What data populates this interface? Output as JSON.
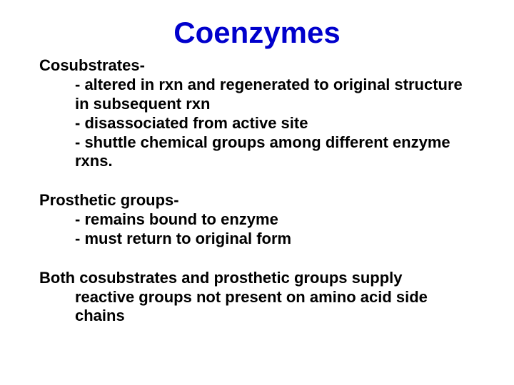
{
  "title": {
    "text": "Coenzymes",
    "color": "#0000cc",
    "fontsize": 42
  },
  "body_fontsize": 22,
  "body_color": "#000000",
  "line_height": 1.22,
  "sections": [
    {
      "header": "Cosubstrates-",
      "bullets": [
        "- altered in rxn and regenerated to original structure in subsequent rxn",
        "- disassociated from active site",
        "- shuttle chemical groups among different enzyme rxns."
      ]
    },
    {
      "header": "Prosthetic groups-",
      "bullets": [
        "- remains bound to enzyme",
        "- must return to original form"
      ]
    }
  ],
  "footer": {
    "line1": "Both cosubstrates and prosthetic groups supply",
    "line2_indented": "reactive groups not present on amino acid side chains"
  }
}
